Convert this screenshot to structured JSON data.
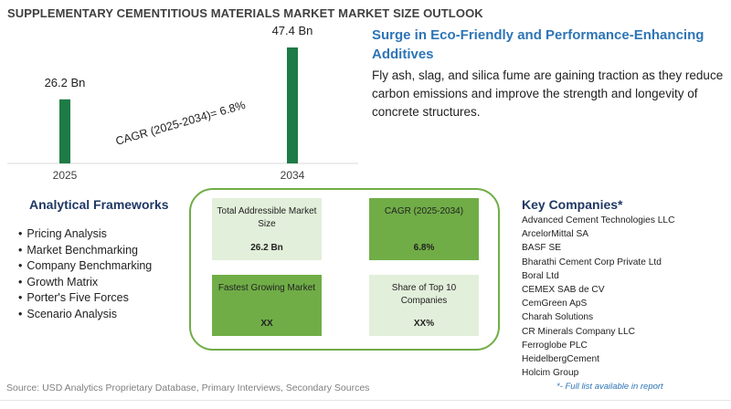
{
  "header": {
    "title": "SUPPLEMENTARY CEMENTITIOUS MATERIALS MARKET MARKET SIZE OUTLOOK"
  },
  "chart_data": {
    "type": "bar",
    "categories": [
      "2025",
      "2034"
    ],
    "values": [
      26.2,
      47.4
    ],
    "value_labels": [
      "26.2 Bn",
      "47.4 Bn"
    ],
    "cagr_label": "CAGR (2025-2034)=",
    "cagr_value": "6.8%",
    "bar_color": "#1e7b45",
    "ylim": [
      0,
      47.4
    ],
    "grid": false
  },
  "insight": {
    "headline": "Surge in Eco-Friendly and Performance-Enhancing Additives",
    "body": "Fly ash, slag, and silica fume are gaining traction as they reduce carbon emissions and improve the strength and longevity of concrete structures."
  },
  "frameworks": {
    "title": "Analytical Frameworks",
    "items": [
      "Pricing Analysis",
      "Market Benchmarking",
      "Company Benchmarking",
      "Growth Matrix",
      "Porter's Five Forces",
      "Scenario Analysis"
    ]
  },
  "metrics": [
    {
      "label": "Total Addressible Market Size",
      "value": "26.2 Bn"
    },
    {
      "label": "CAGR (2025-2034)",
      "value": "6.8%"
    },
    {
      "label": "Fastest Growing Market",
      "value": "XX"
    },
    {
      "label": "Share of Top 10 Companies",
      "value": "XX%"
    }
  ],
  "companies": {
    "title": "Key Companies*",
    "items": [
      "Advanced Cement Technologies LLC",
      "ArcelorMittal SA",
      "BASF SE",
      "Bharathi Cement Corp Private Ltd",
      "Boral Ltd",
      "CEMEX SAB de CV",
      "CemGreen ApS",
      "Charah Solutions",
      "CR Minerals Company LLC",
      "Ferroglobe PLC",
      "HeidelbergCement",
      "Holcim Group"
    ],
    "note": "*- Full list available in report"
  },
  "footer": {
    "source": "Source: USD Analytics Proprietary Database, Primary Interviews, Secondary Sources"
  },
  "colors": {
    "accent_blue": "#2e75b6",
    "navy": "#1f3864",
    "green_dark": "#70ad47",
    "green_light": "#e2efda",
    "bar": "#1e7b45"
  }
}
